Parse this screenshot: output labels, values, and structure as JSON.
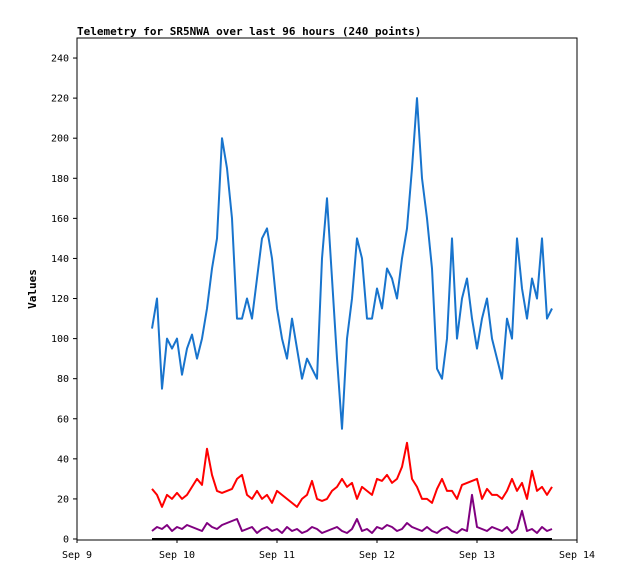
{
  "chart_data": {
    "type": "line",
    "title": "Telemetry for SR5NWA over last 96 hours (240 points)",
    "xlabel": "",
    "ylabel": "Values",
    "x_ticks": [
      "Sep 9",
      "Sep 10",
      "Sep 11",
      "Sep 12",
      "Sep 13",
      "Sep 14"
    ],
    "xlim": [
      "Sep 9",
      "Sep 14"
    ],
    "y_ticks": [
      0,
      20,
      40,
      60,
      80,
      100,
      120,
      140,
      160,
      180,
      200,
      220,
      240
    ],
    "ylim": [
      0,
      250
    ],
    "grid": false,
    "legend": "none",
    "series": [
      {
        "color": "#1874cd",
        "x": [
          0.75,
          0.8,
          0.85,
          0.9,
          0.95,
          1.0,
          1.05,
          1.1,
          1.15,
          1.2,
          1.25,
          1.3,
          1.35,
          1.4,
          1.45,
          1.5,
          1.55,
          1.6,
          1.65,
          1.7,
          1.75,
          1.8,
          1.85,
          1.9,
          1.95,
          2.0,
          2.05,
          2.1,
          2.15,
          2.2,
          2.25,
          2.3,
          2.35,
          2.4,
          2.45,
          2.5,
          2.55,
          2.6,
          2.65,
          2.7,
          2.75,
          2.8,
          2.85,
          2.9,
          2.95,
          3.0,
          3.05,
          3.1,
          3.15,
          3.2,
          3.25,
          3.3,
          3.35,
          3.4,
          3.45,
          3.5,
          3.55,
          3.6,
          3.65,
          3.7,
          3.75,
          3.8,
          3.85,
          3.9,
          3.95,
          4.0,
          4.05,
          4.1,
          4.15,
          4.2,
          4.25,
          4.3,
          4.35,
          4.4,
          4.45,
          4.5,
          4.55,
          4.6,
          4.65,
          4.7,
          4.75
        ],
        "values": [
          105,
          120,
          75,
          100,
          95,
          100,
          82,
          95,
          102,
          90,
          100,
          115,
          135,
          150,
          200,
          185,
          160,
          110,
          110,
          120,
          110,
          130,
          150,
          155,
          140,
          115,
          100,
          90,
          110,
          95,
          80,
          90,
          85,
          80,
          140,
          170,
          130,
          90,
          55,
          100,
          120,
          150,
          140,
          110,
          110,
          125,
          115,
          135,
          130,
          120,
          140,
          155,
          185,
          220,
          180,
          160,
          135,
          85,
          80,
          100,
          150,
          100,
          120,
          130,
          110,
          95,
          110,
          120,
          100,
          90,
          80,
          110,
          100,
          150,
          125,
          110,
          130,
          120,
          150,
          110,
          115
        ]
      },
      {
        "color": "#ff0000",
        "x": [
          0.75,
          0.8,
          0.85,
          0.9,
          0.95,
          1.0,
          1.05,
          1.1,
          1.15,
          1.2,
          1.25,
          1.3,
          1.35,
          1.4,
          1.45,
          1.5,
          1.55,
          1.6,
          1.65,
          1.7,
          1.75,
          1.8,
          1.85,
          1.9,
          1.95,
          2.0,
          2.05,
          2.1,
          2.15,
          2.2,
          2.25,
          2.3,
          2.35,
          2.4,
          2.45,
          2.5,
          2.55,
          2.6,
          2.65,
          2.7,
          2.75,
          2.8,
          2.85,
          2.9,
          2.95,
          3.0,
          3.05,
          3.1,
          3.15,
          3.2,
          3.25,
          3.3,
          3.35,
          3.4,
          3.45,
          3.5,
          3.55,
          3.6,
          3.65,
          3.7,
          3.75,
          3.8,
          3.85,
          3.9,
          3.95,
          4.0,
          4.05,
          4.1,
          4.15,
          4.2,
          4.25,
          4.3,
          4.35,
          4.4,
          4.45,
          4.5,
          4.55,
          4.6,
          4.65,
          4.7,
          4.75
        ],
        "values": [
          25,
          22,
          16,
          22,
          20,
          23,
          20,
          22,
          26,
          30,
          27,
          45,
          32,
          24,
          23,
          24,
          25,
          30,
          32,
          22,
          20,
          24,
          20,
          22,
          18,
          24,
          22,
          20,
          18,
          16,
          20,
          22,
          29,
          20,
          19,
          20,
          24,
          26,
          30,
          26,
          28,
          20,
          26,
          24,
          22,
          30,
          29,
          32,
          28,
          30,
          36,
          48,
          30,
          26,
          20,
          20,
          18,
          25,
          30,
          24,
          24,
          20,
          27,
          28,
          29,
          30,
          20,
          25,
          22,
          22,
          20,
          24,
          30,
          24,
          28,
          20,
          34,
          24,
          26,
          22,
          26
        ]
      },
      {
        "color": "#800080",
        "x": [
          0.75,
          0.8,
          0.85,
          0.9,
          0.95,
          1.0,
          1.05,
          1.1,
          1.15,
          1.2,
          1.25,
          1.3,
          1.35,
          1.4,
          1.45,
          1.5,
          1.55,
          1.6,
          1.65,
          1.7,
          1.75,
          1.8,
          1.85,
          1.9,
          1.95,
          2.0,
          2.05,
          2.1,
          2.15,
          2.2,
          2.25,
          2.3,
          2.35,
          2.4,
          2.45,
          2.5,
          2.55,
          2.6,
          2.65,
          2.7,
          2.75,
          2.8,
          2.85,
          2.9,
          2.95,
          3.0,
          3.05,
          3.1,
          3.15,
          3.2,
          3.25,
          3.3,
          3.35,
          3.4,
          3.45,
          3.5,
          3.55,
          3.6,
          3.65,
          3.7,
          3.75,
          3.8,
          3.85,
          3.9,
          3.95,
          4.0,
          4.05,
          4.1,
          4.15,
          4.2,
          4.25,
          4.3,
          4.35,
          4.4,
          4.45,
          4.5,
          4.55,
          4.6,
          4.65,
          4.7,
          4.75
        ],
        "values": [
          4,
          6,
          5,
          7,
          4,
          6,
          5,
          7,
          6,
          5,
          4,
          8,
          6,
          5,
          7,
          8,
          9,
          10,
          4,
          5,
          6,
          3,
          5,
          6,
          4,
          5,
          3,
          6,
          4,
          5,
          3,
          4,
          6,
          5,
          3,
          4,
          5,
          6,
          4,
          3,
          5,
          10,
          4,
          5,
          3,
          6,
          5,
          7,
          6,
          4,
          5,
          8,
          6,
          5,
          4,
          6,
          4,
          3,
          5,
          6,
          4,
          3,
          5,
          4,
          22,
          6,
          5,
          4,
          6,
          5,
          4,
          6,
          3,
          5,
          14,
          4,
          5,
          3,
          6,
          4,
          5
        ]
      },
      {
        "color": "#000000",
        "x": [
          0.75,
          4.75
        ],
        "values": [
          0,
          0
        ]
      }
    ]
  }
}
